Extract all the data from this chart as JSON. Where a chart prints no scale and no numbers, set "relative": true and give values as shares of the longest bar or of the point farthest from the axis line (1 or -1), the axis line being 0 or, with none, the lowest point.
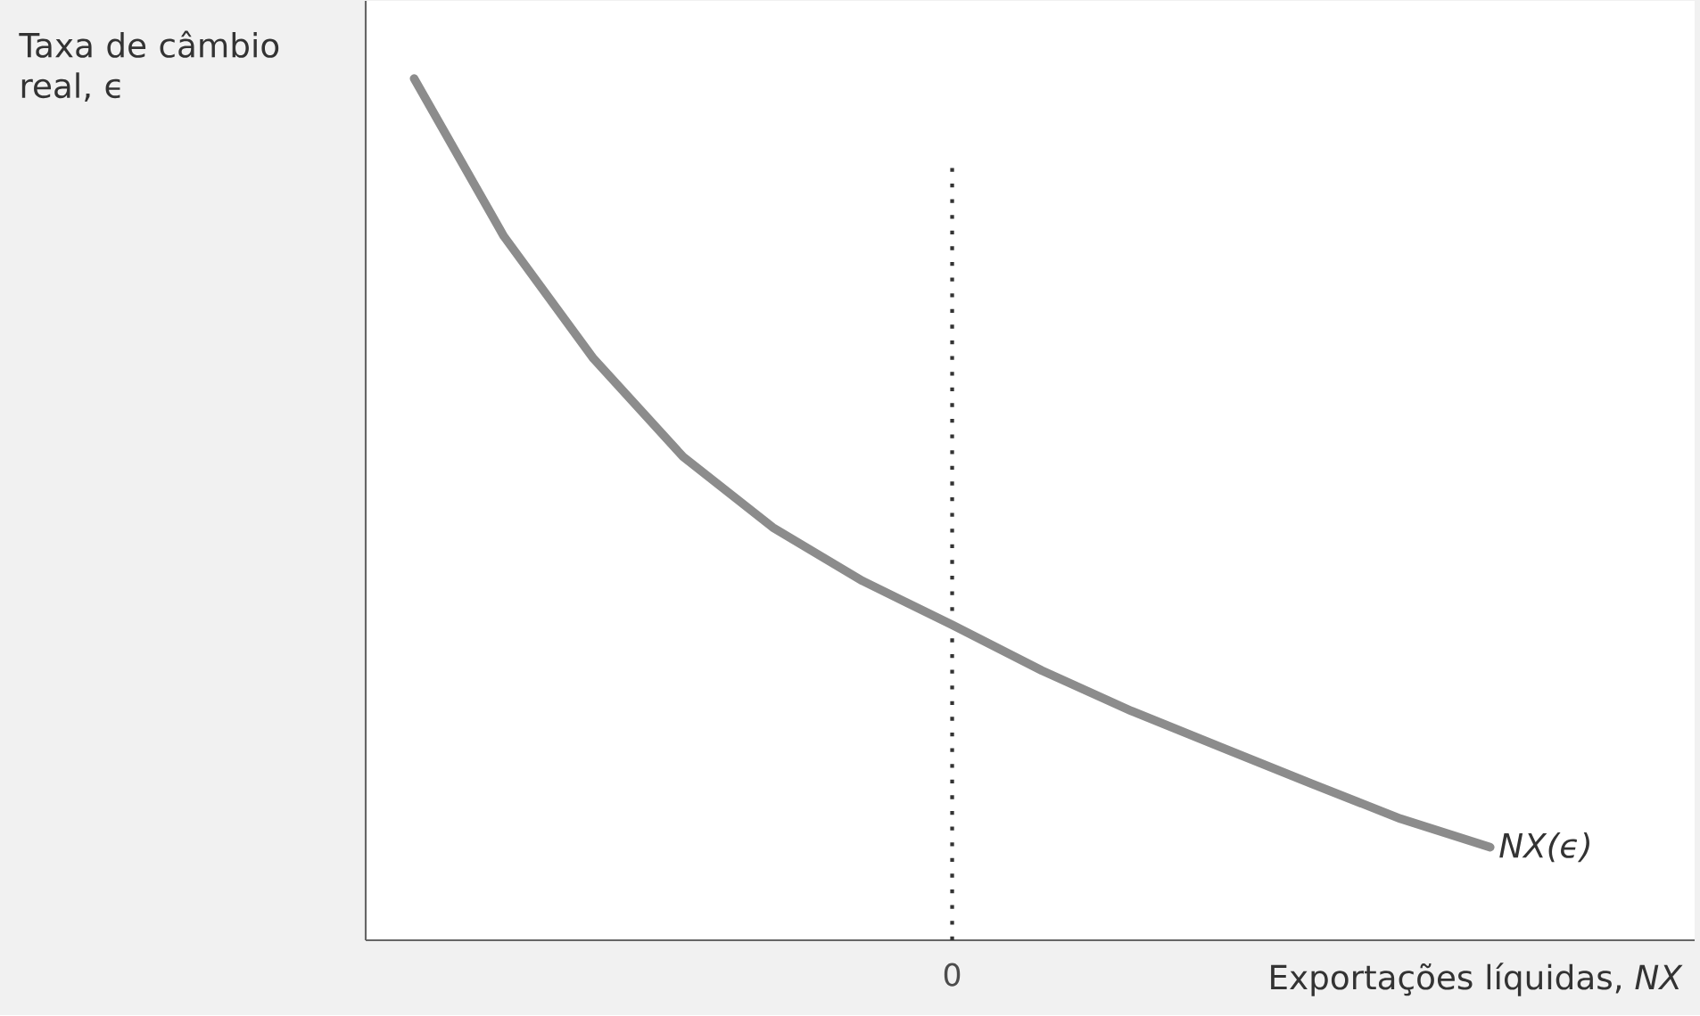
{
  "chart_data": {
    "type": "line",
    "relative": true,
    "xlabel": "Exportações líquidas, *NX*",
    "ylabel": "Taxa de câmbio real, ϵ",
    "categories": [
      null,
      null,
      null,
      null,
      null,
      null,
      null,
      null,
      null,
      null,
      null,
      null,
      null
    ],
    "series": [
      {
        "name": "*NX(ϵ)*",
        "color": "#8c8c8c",
        "values": [
          1.0,
          0.817,
          0.675,
          0.561,
          0.479,
          0.417,
          0.366,
          0.313,
          0.266,
          0.224,
          0.182,
          0.141,
          0.108
        ]
      }
    ],
    "annotations": [
      "0"
    ]
  }
}
